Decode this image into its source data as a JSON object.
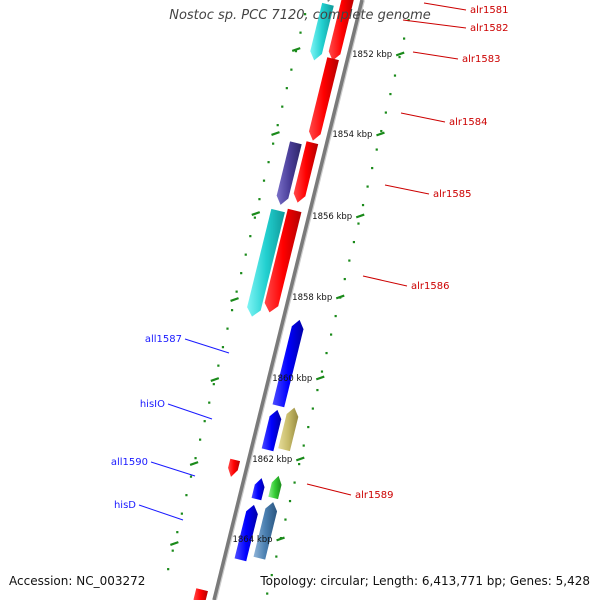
{
  "header": {
    "title": "Nostoc sp. PCC 7120, complete genome"
  },
  "footer": {
    "accession": "Accession: NC_003272",
    "summary": "Topology: circular; Length: 6,413,771 bp; Genes: 5,428"
  },
  "map": {
    "scale_labels": [
      "1852 kbp",
      "1854 kbp",
      "1856 kbp",
      "1858 kbp",
      "1860 kbp",
      "1862 kbp",
      "1864 kbp"
    ],
    "gene_labels_forward": [
      {
        "label": "alr1581",
        "color": "#cc0000"
      },
      {
        "label": "alr1582",
        "color": "#cc0000"
      },
      {
        "label": "alr1583",
        "color": "#cc0000"
      },
      {
        "label": "alr1584",
        "color": "#cc0000"
      },
      {
        "label": "alr1585",
        "color": "#cc0000"
      },
      {
        "label": "alr1586",
        "color": "#cc0000"
      },
      {
        "label": "alr1589",
        "color": "#cc0000"
      }
    ],
    "gene_labels_reverse": [
      {
        "label": "all1587",
        "color": "#1a1aff"
      },
      {
        "label": "hisIO",
        "color": "#1a1aff"
      },
      {
        "label": "all1590",
        "color": "#1a1aff"
      },
      {
        "label": "hisD",
        "color": "#1a1aff"
      }
    ]
  }
}
